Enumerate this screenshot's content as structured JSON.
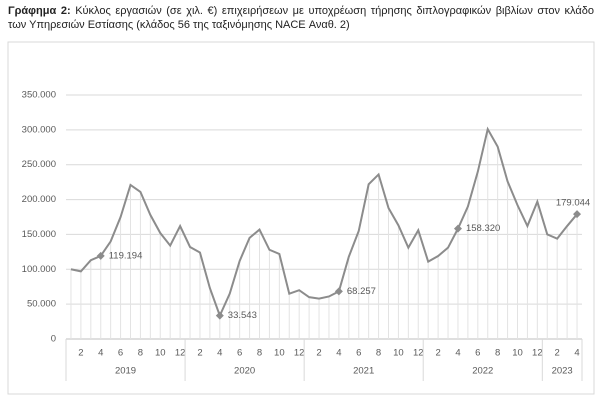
{
  "chart_data": {
    "type": "line",
    "label": "Γράφημα 2:",
    "title": "Κύκλος εργασιών (σε χιλ. €) επιχειρήσεων με υποχρέωση τήρησης διπλογραφικών βιβλίων στον κλάδο των Υπηρεσιών Εστίασης (κλάδος 56 της ταξινόμησης NACE Αναθ. 2)",
    "categories": [
      null,
      "2",
      null,
      "4",
      null,
      "6",
      null,
      "8",
      null,
      "10",
      null,
      "12",
      null,
      "2",
      null,
      "4",
      null,
      "6",
      null,
      "8",
      null,
      "10",
      null,
      "12",
      null,
      "2",
      null,
      "4",
      null,
      "6",
      null,
      "8",
      null,
      "10",
      null,
      "12",
      null,
      "2",
      null,
      "4",
      null,
      "6",
      null,
      "8",
      null,
      "10",
      null,
      "12",
      null,
      "2",
      null,
      "4"
    ],
    "years": [
      "2019",
      "2020",
      "2021",
      "2022",
      "2023"
    ],
    "series": [
      {
        "name": "Κύκλος εργασιών",
        "color": "#8c8c8c",
        "values": [
          100000,
          97000,
          113000,
          119194,
          140000,
          175000,
          221000,
          211000,
          178000,
          152000,
          134000,
          162000,
          132000,
          124000,
          73000,
          33543,
          65000,
          112000,
          145000,
          157000,
          128000,
          122000,
          65000,
          70000,
          60000,
          58000,
          61000,
          68257,
          118000,
          155000,
          222000,
          236000,
          188000,
          163000,
          131000,
          156000,
          111000,
          119000,
          131000,
          158320,
          190000,
          240000,
          301000,
          276000,
          226000,
          192000,
          162000,
          197000,
          150000,
          144000,
          162000,
          179044
        ],
        "value_labels": [
          null,
          null,
          null,
          "119.194",
          null,
          null,
          null,
          null,
          null,
          null,
          null,
          null,
          null,
          null,
          null,
          "33.543",
          null,
          null,
          null,
          null,
          null,
          null,
          null,
          null,
          null,
          null,
          null,
          "68.257",
          null,
          null,
          null,
          null,
          null,
          null,
          null,
          null,
          null,
          null,
          null,
          "158.320",
          null,
          null,
          null,
          null,
          null,
          null,
          null,
          null,
          null,
          null,
          null,
          "179.044"
        ]
      }
    ],
    "ylim": [
      0,
      350000
    ],
    "yticks": [
      0,
      {
        "value": 50000,
        "label": "50.000"
      },
      {
        "value": 100000,
        "label": "100.000"
      },
      {
        "value": 150000,
        "label": "150.000"
      },
      {
        "value": 200000,
        "label": "200.000"
      },
      {
        "value": 250000,
        "label": "250.000"
      },
      {
        "value": 300000,
        "label": "300.000"
      },
      {
        "value": 350000,
        "label": "350.000"
      }
    ],
    "grid": true
  }
}
